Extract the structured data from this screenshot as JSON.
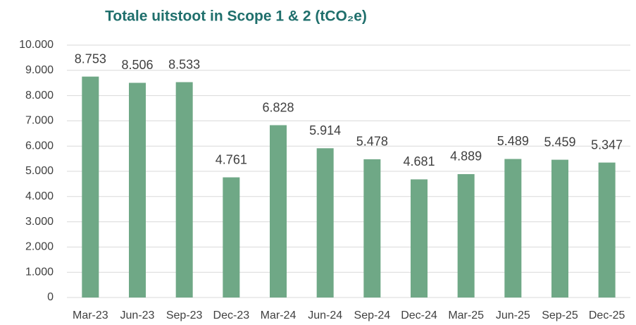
{
  "chart_data": {
    "type": "bar",
    "title": "Totale uitstoot in Scope 1 & 2 (tCO₂e)",
    "categories": [
      "Mar-23",
      "Jun-23",
      "Sep-23",
      "Dec-23",
      "Mar-24",
      "Jun-24",
      "Sep-24",
      "Dec-24",
      "Mar-25",
      "Jun-25",
      "Sep-25",
      "Dec-25"
    ],
    "values": [
      8753,
      8506,
      8533,
      4761,
      6828,
      5914,
      5478,
      4681,
      4889,
      5489,
      5459,
      5347
    ],
    "value_labels": [
      "8.753",
      "8.506",
      "8.533",
      "4.761",
      "6.828",
      "5.914",
      "5.478",
      "4.681",
      "4.889",
      "5.489",
      "5.459",
      "5.347"
    ],
    "color": "#6fa886",
    "ylim": [
      0,
      10000
    ],
    "yticks": [
      0,
      {
        "value": 1000,
        "label": "1.000"
      },
      {
        "value": 2000,
        "label": "2.000"
      },
      {
        "value": 3000,
        "label": "3.000"
      },
      {
        "value": 4000,
        "label": "4.000"
      },
      {
        "value": 5000,
        "label": "5.000"
      },
      {
        "value": 6000,
        "label": "6.000"
      },
      {
        "value": 7000,
        "label": "7.000"
      },
      {
        "value": 8000,
        "label": "8.000"
      },
      {
        "value": 9000,
        "label": "9.000"
      },
      {
        "value": 10000,
        "label": "10.000"
      }
    ],
    "grid": true
  }
}
